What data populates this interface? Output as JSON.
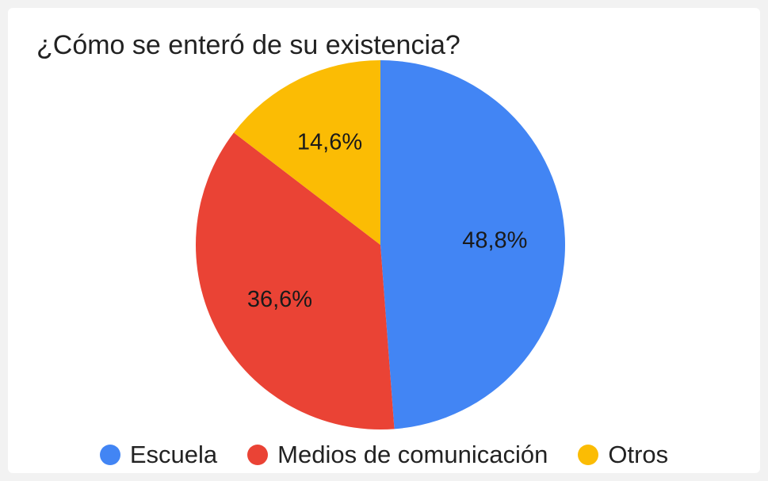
{
  "chart_data": {
    "type": "pie",
    "title": "¿Cómo se enteró de su existencia?",
    "categories": [
      "Escuela",
      "Medios de comunicación",
      "Otros"
    ],
    "values": [
      48.8,
      36.6,
      14.6
    ],
    "data_labels": [
      "48,8%",
      "36,6%",
      "14,6%"
    ],
    "colors": [
      "#4285f4",
      "#ea4335",
      "#fbbc04"
    ],
    "start_angle_deg": 0,
    "direction": "clockwise",
    "legend_position": "bottom"
  }
}
